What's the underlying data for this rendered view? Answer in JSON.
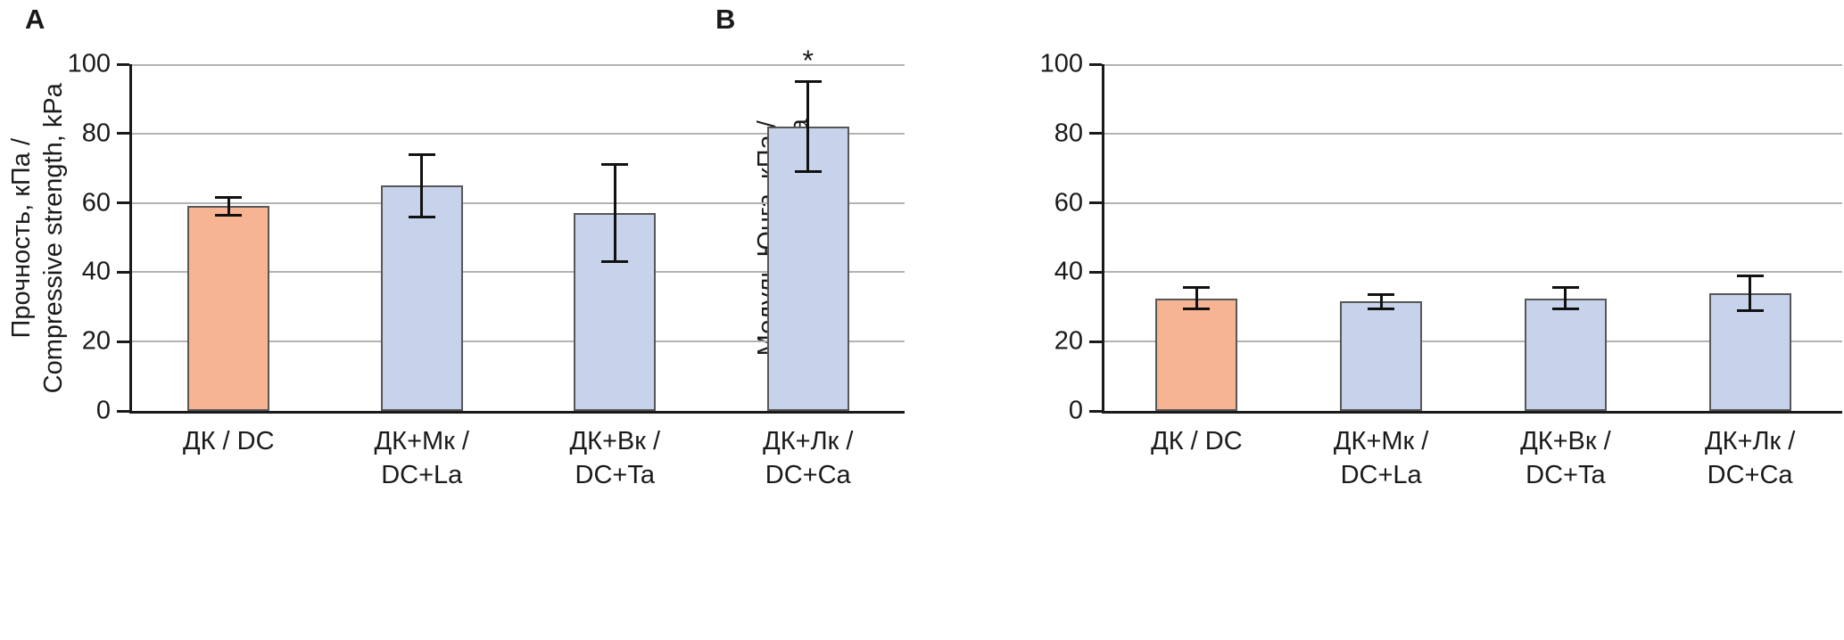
{
  "figure": {
    "background": "#ffffff",
    "axis_color": "#1a1a1a",
    "grid_color": "#b3b3b3",
    "error_bar_color": "#111111",
    "accent_orange": "#f6b493",
    "accent_blue": "#c6d3ea"
  },
  "chart_data": [
    {
      "type": "bar",
      "panel": "A",
      "title": "",
      "xlabel": "",
      "ylabel": "Прочность, кПа / Compressive strength, kPa",
      "ylabel_lines": [
        "Прочность, кПа /",
        "Compressive strength, kPa"
      ],
      "categories": [
        "ДК / DC",
        "ДК+Мк / DC+La",
        "ДК+Вк / DC+Ta",
        "ДК+Лк / DC+Ca"
      ],
      "category_lines": [
        [
          "ДК / DC"
        ],
        [
          "ДК+Мк /",
          "DC+La"
        ],
        [
          "ДК+Вк /",
          "DC+Ta"
        ],
        [
          "ДК+Лк /",
          "DC+Ca"
        ]
      ],
      "values": [
        59,
        65,
        57,
        82
      ],
      "errors": [
        2.5,
        9,
        14,
        13
      ],
      "bar_colors": [
        "#f6b493",
        "#c6d3ea",
        "#c6d3ea",
        "#c6d3ea"
      ],
      "annotations": [
        {
          "index": 3,
          "text": "*"
        }
      ],
      "ylim": [
        0,
        100
      ],
      "yticks": [
        0,
        20,
        40,
        60,
        80,
        100
      ],
      "grid": true,
      "legend": null
    },
    {
      "type": "bar",
      "panel": "B",
      "title": "",
      "xlabel": "",
      "ylabel": "Модуль Юнга, кПа / oung's modulus, kPa",
      "ylabel_lines": [
        "Модуль Юнга, кПа /",
        "oung's modulus, kPa"
      ],
      "categories": [
        "ДК / DC",
        "ДК+Мк / DC+La",
        "ДК+Вк / DC+Ta",
        "ДК+Лк / DC+Ca"
      ],
      "category_lines": [
        [
          "ДК / DC"
        ],
        [
          "ДК+Мк /",
          "DC+La"
        ],
        [
          "ДК+Вк /",
          "DC+Ta"
        ],
        [
          "ДК+Лк /",
          "DC+Ca"
        ]
      ],
      "values": [
        32.5,
        31.5,
        32.5,
        34
      ],
      "errors": [
        3,
        2,
        3,
        5
      ],
      "bar_colors": [
        "#f6b493",
        "#c6d3ea",
        "#c6d3ea",
        "#c6d3ea"
      ],
      "annotations": [],
      "ylim": [
        0,
        100
      ],
      "yticks": [
        0,
        20,
        40,
        60,
        80,
        100
      ],
      "grid": true,
      "legend": null
    }
  ]
}
